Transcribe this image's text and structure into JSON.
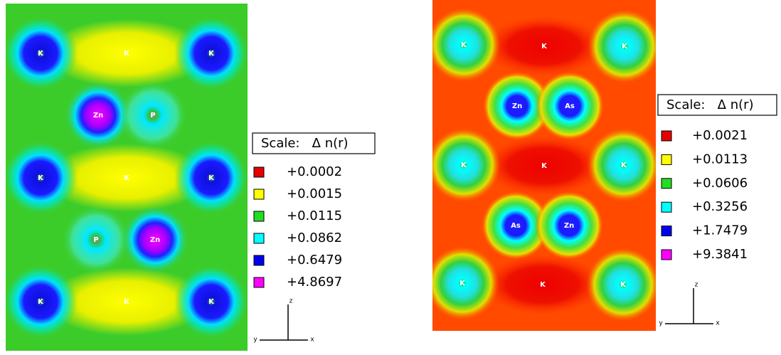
{
  "panels": [
    {
      "atoms": [
        "K",
        "K",
        "K",
        "Zn",
        "P",
        "K",
        "K",
        "K",
        "P",
        "Zn",
        "K",
        "K",
        "K"
      ],
      "legend": {
        "title": "Scale:   Δ n(r)",
        "entries": [
          {
            "label": "+0.0002",
            "color": "#e60000"
          },
          {
            "label": "+0.0015",
            "color": "#ffff00"
          },
          {
            "label": "+0.0115",
            "color": "#22dd22"
          },
          {
            "label": "+0.0862",
            "color": "#00ffff"
          },
          {
            "label": "+0.6479",
            "color": "#0000ee"
          },
          {
            "label": "+4.8697",
            "color": "#ff00ff"
          }
        ]
      },
      "axes": {
        "z": "z",
        "y": "y",
        "x": "x"
      }
    },
    {
      "atoms": [
        "K",
        "K",
        "K",
        "Zn",
        "As",
        "K",
        "K",
        "K",
        "As",
        "Zn",
        "K",
        "K",
        "K"
      ],
      "legend": {
        "title": "Scale:   Δ n(r)",
        "entries": [
          {
            "label": "+0.0021",
            "color": "#e60000"
          },
          {
            "label": "+0.0113",
            "color": "#ffff00"
          },
          {
            "label": "+0.0606",
            "color": "#22dd22"
          },
          {
            "label": "+0.3256",
            "color": "#00ffff"
          },
          {
            "label": "+1.7479",
            "color": "#0000ee"
          },
          {
            "label": "+9.3841",
            "color": "#ff00ff"
          }
        ]
      },
      "axes": {
        "z": "z",
        "y": "y",
        "x": "x"
      }
    }
  ]
}
